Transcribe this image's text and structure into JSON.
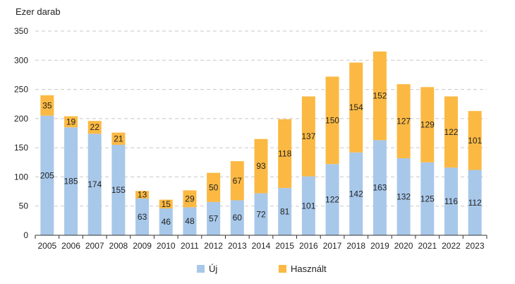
{
  "chart_data": {
    "type": "bar",
    "stacked": true,
    "y_unit_label": "Ezer darab",
    "categories": [
      "2005",
      "2006",
      "2007",
      "2008",
      "2009",
      "2010",
      "2011",
      "2012",
      "2013",
      "2014",
      "2015",
      "2016",
      "2017",
      "2018",
      "2019",
      "2020",
      "2021",
      "2022",
      "2023"
    ],
    "series": [
      {
        "name": "Új",
        "color": "#a8c8ea",
        "values": [
          205,
          185,
          174,
          155,
          63,
          46,
          48,
          57,
          60,
          72,
          81,
          101,
          122,
          142,
          163,
          132,
          125,
          116,
          112
        ]
      },
      {
        "name": "Használt",
        "color": "#fbb943",
        "values": [
          35,
          19,
          22,
          21,
          13,
          15,
          29,
          50,
          67,
          93,
          118,
          137,
          150,
          154,
          152,
          127,
          129,
          122,
          101
        ]
      }
    ],
    "ylim": [
      0,
      350
    ],
    "yticks": [
      0,
      50,
      100,
      150,
      200,
      250,
      300,
      350
    ],
    "grid": true,
    "legend_position": "bottom"
  }
}
